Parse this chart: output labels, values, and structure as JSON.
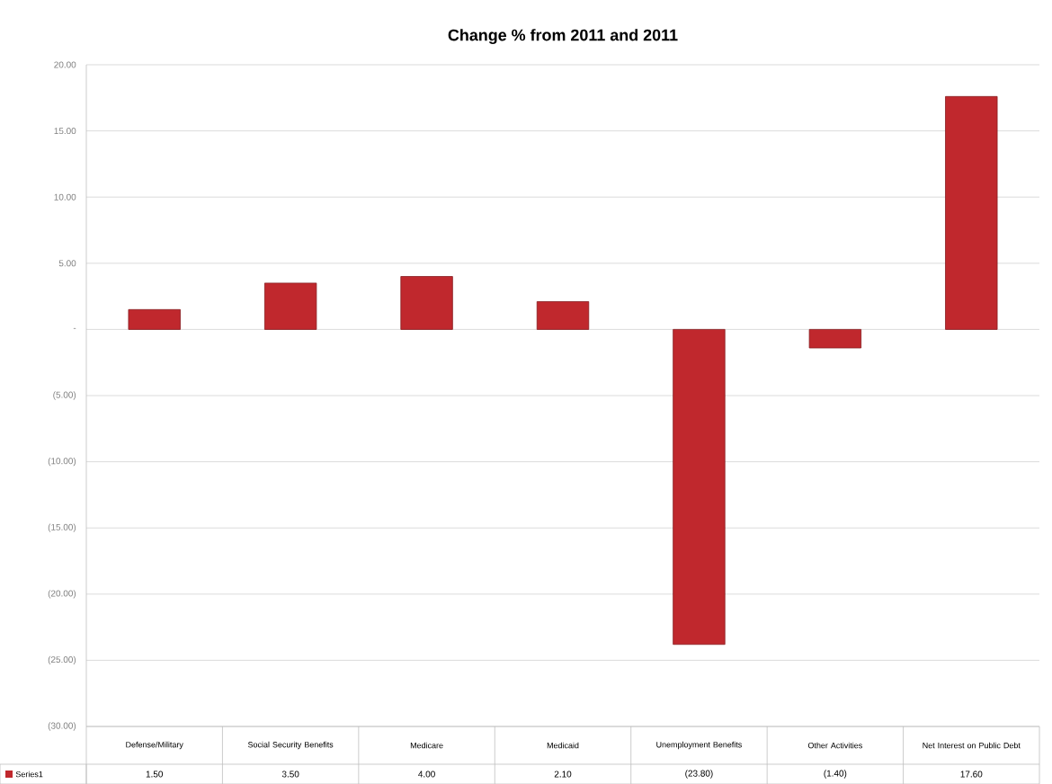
{
  "chart_data": {
    "type": "bar",
    "title": "Change % from 2011 and 2011",
    "categories": [
      "Defense/Military",
      "Social Security Benefits",
      "Medicare",
      "Medicaid",
      "Unemployment Benefits",
      "Other Activities",
      "Net Interest on Public Debt"
    ],
    "series": [
      {
        "name": "Series1",
        "color": "#c0282d",
        "values": [
          1.5,
          3.5,
          4.0,
          2.1,
          -23.8,
          -1.4,
          17.6
        ],
        "value_labels": [
          "1.50",
          "3.50",
          "4.00",
          "2.10",
          "(23.80)",
          "(1.40)",
          "17.60"
        ]
      }
    ],
    "ylim": [
      -30,
      20
    ],
    "yticks": [
      {
        "value": 20,
        "label": "20.00"
      },
      {
        "value": 15,
        "label": "15.00"
      },
      {
        "value": 10,
        "label": "10.00"
      },
      {
        "value": 5,
        "label": "5.00"
      },
      {
        "value": 0,
        "label": "-"
      },
      {
        "value": -5,
        "label": "(5.00)"
      },
      {
        "value": -10,
        "label": "(10.00)"
      },
      {
        "value": -15,
        "label": "(15.00)"
      },
      {
        "value": -20,
        "label": "(20.00)"
      },
      {
        "value": -25,
        "label": "(25.00)"
      },
      {
        "value": -30,
        "label": "(30.00)"
      }
    ],
    "grid": "y",
    "legend": "bottom"
  }
}
